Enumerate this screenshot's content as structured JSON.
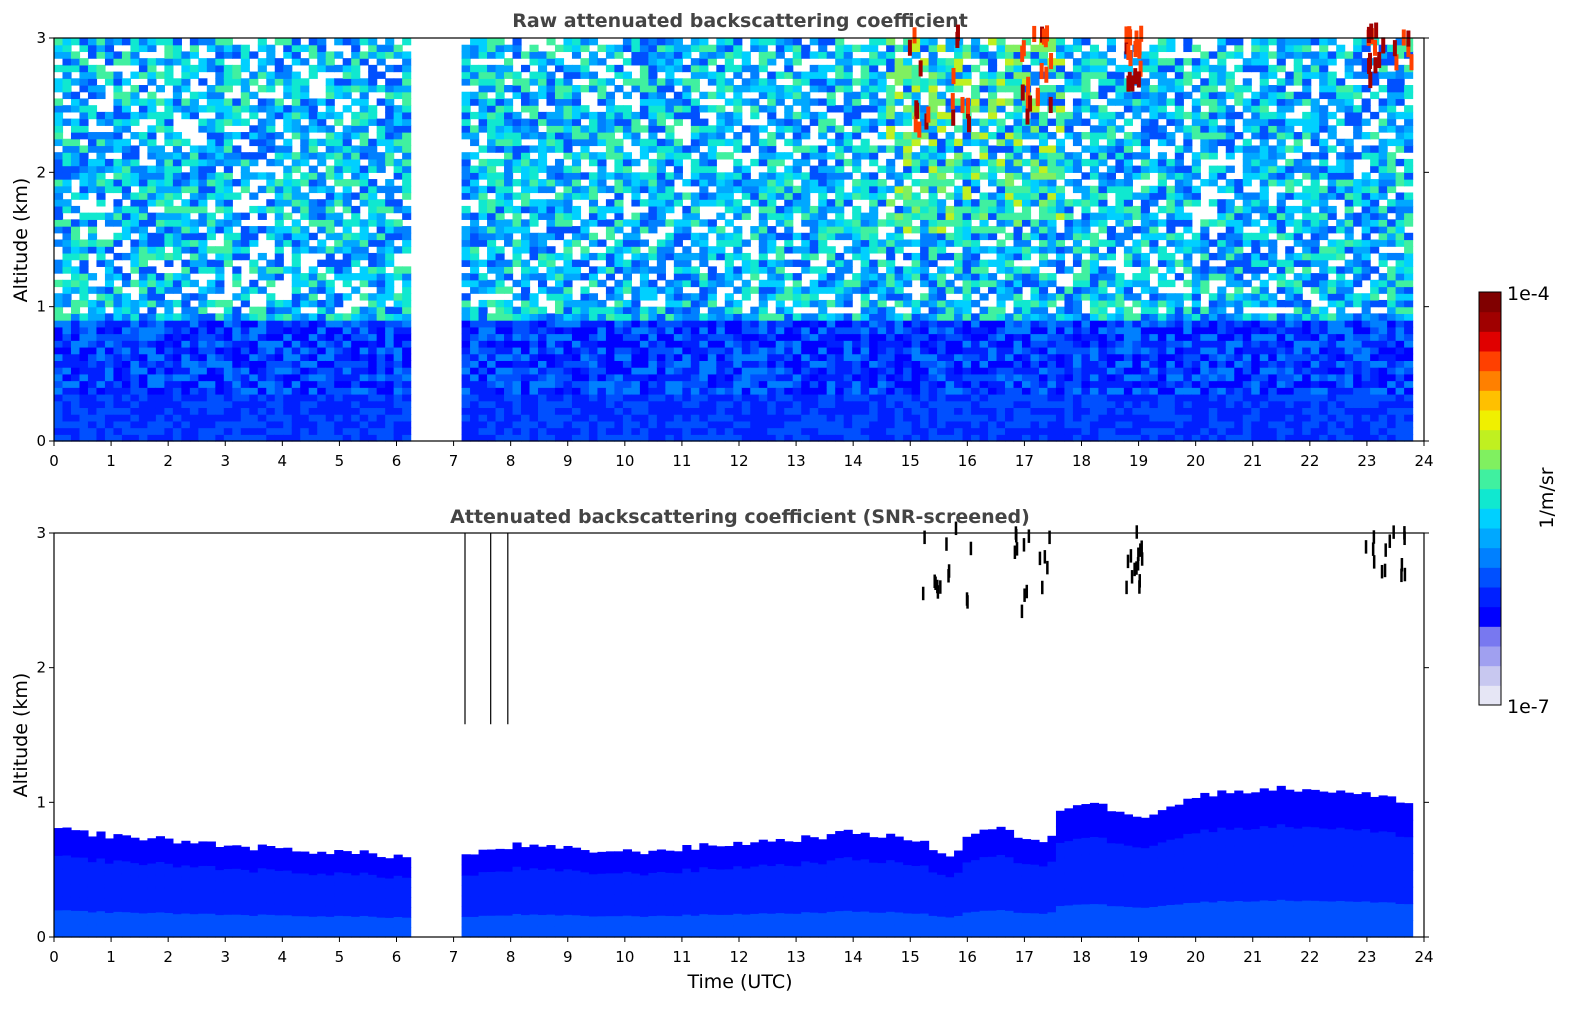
{
  "chart_data": [
    {
      "type": "heatmap",
      "title": "Raw attenuated backscattering coefficient",
      "xlabel": "",
      "ylabel": "Altitude (km)",
      "xlim": [
        0,
        24
      ],
      "ylim": [
        0,
        3
      ],
      "xticks": [
        "0",
        "1",
        "2",
        "3",
        "4",
        "5",
        "6",
        "7",
        "8",
        "9",
        "10",
        "11",
        "12",
        "13",
        "14",
        "15",
        "16",
        "17",
        "18",
        "19",
        "20",
        "21",
        "22",
        "23",
        "24"
      ],
      "yticks": [
        "0",
        "1",
        "2",
        "3"
      ],
      "data_gaps_utc": [
        [
          6.3,
          7.05
        ]
      ],
      "data_end_utc": 23.8,
      "cloud_features": [
        {
          "x_range": [
            14.95,
            16.05
          ],
          "alt_range_km": [
            2.25,
            3.0
          ]
        },
        {
          "x_range": [
            16.8,
            17.45
          ],
          "alt_range_km": [
            2.35,
            3.0
          ]
        },
        {
          "x_range": [
            18.75,
            19.05
          ],
          "alt_range_km": [
            2.5,
            3.0
          ]
        },
        {
          "x_range": [
            22.9,
            23.75
          ],
          "alt_range_km": [
            2.6,
            3.0
          ]
        }
      ]
    },
    {
      "type": "heatmap",
      "title": "Attenuated backscattering coefficient (SNR-screened)",
      "xlabel": "Time (UTC)",
      "ylabel": "Altitude (km)",
      "xlim": [
        0,
        24
      ],
      "ylim": [
        0,
        3
      ],
      "xticks": [
        "0",
        "1",
        "2",
        "3",
        "4",
        "5",
        "6",
        "7",
        "8",
        "9",
        "10",
        "11",
        "12",
        "13",
        "14",
        "15",
        "16",
        "17",
        "18",
        "19",
        "20",
        "21",
        "22",
        "23",
        "24"
      ],
      "yticks": [
        "0",
        "1",
        "2",
        "3"
      ],
      "boundary_layer_top_km": [
        [
          0,
          0.8
        ],
        [
          1,
          0.75
        ],
        [
          2,
          0.72
        ],
        [
          3,
          0.68
        ],
        [
          4,
          0.65
        ],
        [
          5,
          0.63
        ],
        [
          6,
          0.6
        ],
        [
          6.3,
          0.58
        ],
        [
          7.05,
          0.6
        ],
        [
          8,
          0.68
        ],
        [
          9,
          0.65
        ],
        [
          10,
          0.63
        ],
        [
          11,
          0.66
        ],
        [
          12,
          0.7
        ],
        [
          13,
          0.73
        ],
        [
          14,
          0.78
        ],
        [
          15,
          0.72
        ],
        [
          15.7,
          0.6
        ],
        [
          16,
          0.78
        ],
        [
          16.5,
          0.82
        ],
        [
          17,
          0.7
        ],
        [
          17.4,
          0.72
        ],
        [
          17.5,
          0.95
        ],
        [
          18,
          1.0
        ],
        [
          19,
          0.9
        ],
        [
          20,
          1.05
        ],
        [
          21,
          1.1
        ],
        [
          22,
          1.1
        ],
        [
          23,
          1.05
        ],
        [
          23.8,
          1.0
        ]
      ]
    }
  ],
  "colorbar": {
    "label": "1/m/sr",
    "max_label": "1e-4",
    "min_label": "1e-7",
    "colors": [
      "#e6e6f5",
      "#c8c8f0",
      "#a0a0f0",
      "#7878f0",
      "#0000ff",
      "#0020ff",
      "#0050ff",
      "#0080ff",
      "#00a8ff",
      "#00d0ff",
      "#10e8d0",
      "#40f0a0",
      "#80f060",
      "#c0f020",
      "#f0f000",
      "#ffc000",
      "#ff8000",
      "#ff4000",
      "#e00000",
      "#a00000",
      "#800000"
    ]
  }
}
